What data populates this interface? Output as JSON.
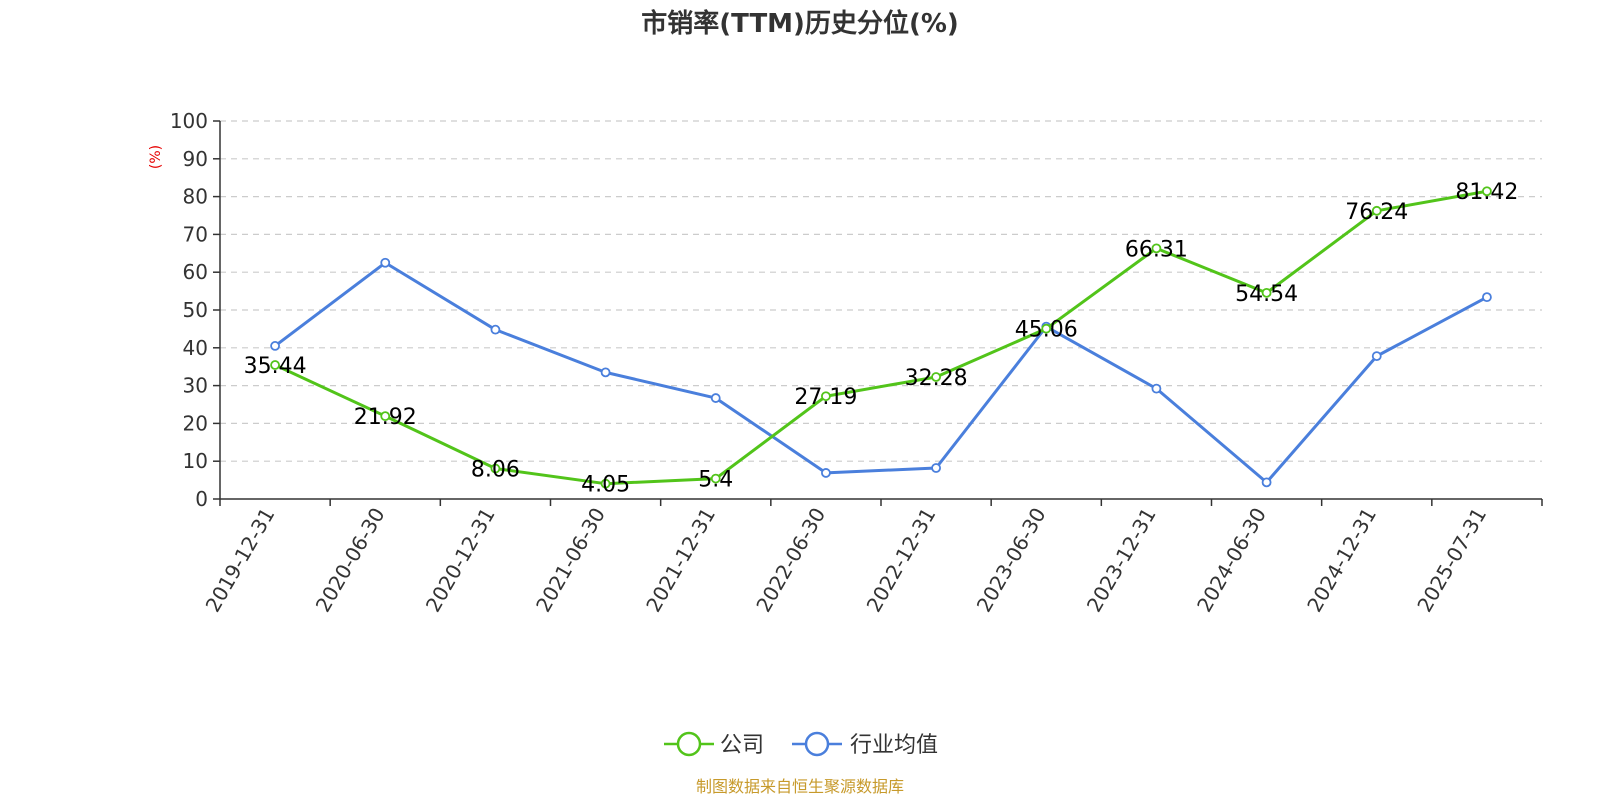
{
  "chart_data": {
    "type": "line",
    "title": "市销率(TTM)历史分位(%)",
    "ylabel": "(%)",
    "ylim": [
      0,
      100
    ],
    "yticks": [
      0,
      10,
      20,
      30,
      40,
      50,
      60,
      70,
      80,
      90,
      100
    ],
    "grid": true,
    "legend_position": "bottom-center",
    "categories": [
      "2019-12-31",
      "2020-06-30",
      "2020-12-31",
      "2021-06-30",
      "2021-12-31",
      "2022-06-30",
      "2022-12-31",
      "2023-06-30",
      "2023-12-31",
      "2024-06-30",
      "2024-12-31",
      "2025-07-31"
    ],
    "series": [
      {
        "name": "公司",
        "color": "#52c41a",
        "values": [
          35.44,
          21.92,
          8.06,
          4.05,
          5.4,
          27.19,
          32.28,
          45.06,
          66.31,
          54.54,
          76.24,
          81.42
        ],
        "labels": [
          "35.44",
          "21.92",
          "8.06",
          "4.05",
          "5.4",
          "27.19",
          "32.28",
          "45.06",
          "66.31",
          "54.54",
          "76.24",
          "81.42"
        ]
      },
      {
        "name": "行业均值",
        "color": "#4a7fdc",
        "values": [
          40.5,
          62.5,
          44.8,
          33.5,
          26.7,
          6.9,
          8.2,
          45.6,
          29.2,
          4.4,
          37.8,
          53.4
        ]
      }
    ],
    "source": "制图数据来自恒生聚源数据库"
  }
}
